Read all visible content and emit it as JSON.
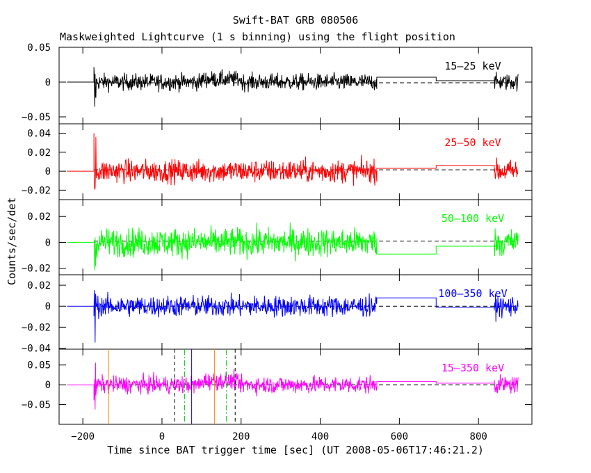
{
  "title": "Swift-BAT GRB 080506",
  "subtitle": "Maskweighted Lightcurve (1 s binning) using the flight position",
  "chart_data": {
    "type": "line",
    "xlabel": "Time since BAT trigger time [sec] (UT 2008-05-06T17:46:21.2)",
    "ylabel": "Counts/sec/det",
    "xlim": [
      -260,
      935
    ],
    "x_ticks": [
      -200,
      0,
      200,
      400,
      600,
      800
    ],
    "trigger_start": -172,
    "continuous_end": 543,
    "gap_start": 840,
    "data_end": 900,
    "panels": [
      {
        "name": "15-25 keV",
        "label": "15–25 keV",
        "color": "#000000",
        "ylim": [
          -0.06,
          0.05
        ],
        "ticks": [
          0.05,
          0,
          -0.05
        ],
        "tick_labels": [
          "0.05",
          "0",
          "−0.05"
        ],
        "noise": 0.006,
        "steps": [
          {
            "x0": 543,
            "x1": 693,
            "y": 0.007
          },
          {
            "x0": 693,
            "x1": 840,
            "y": 0.002
          }
        ],
        "dashed": -0.001,
        "spike_min": -0.045,
        "spike_max": 0.032
      },
      {
        "name": "25-50 keV",
        "label": "25–50 keV",
        "color": "#ff0000",
        "ylim": [
          -0.03,
          0.05
        ],
        "ticks": [
          0.04,
          0.02,
          0,
          -0.02
        ],
        "tick_labels": [
          "0.04",
          "0.02",
          "0",
          "−0.02"
        ],
        "noise": 0.006,
        "steps": [
          {
            "x0": 543,
            "x1": 693,
            "y": 0.003
          },
          {
            "x0": 693,
            "x1": 840,
            "y": 0.006
          }
        ],
        "dashed": 0.0015,
        "spike_min": -0.022,
        "spike_max": 0.045
      },
      {
        "name": "50-100 keV",
        "label": "50–100 keV",
        "color": "#00ff00",
        "ylim": [
          -0.025,
          0.033
        ],
        "ticks": [
          0.02,
          0,
          -0.02
        ],
        "tick_labels": [
          "0.02",
          "0",
          "−0.02"
        ],
        "noise": 0.0055,
        "steps": [
          {
            "x0": 543,
            "x1": 693,
            "y": -0.009
          },
          {
            "x0": 693,
            "x1": 840,
            "y": -0.003
          }
        ],
        "dashed": 0.001,
        "spike_min": -0.022,
        "spike_max": 0.028
      },
      {
        "name": "100-350 keV",
        "label": "100–350 keV",
        "color": "#0000ff",
        "ylim": [
          -0.041,
          0.03
        ],
        "ticks": [
          0.02,
          0,
          -0.02,
          -0.04
        ],
        "tick_labels": [
          "0.02",
          "0",
          "−0.02",
          "−0.04"
        ],
        "noise": 0.005,
        "steps": [
          {
            "x0": 543,
            "x1": 693,
            "y": 0.008
          },
          {
            "x0": 693,
            "x1": 840,
            "y": -0.001
          }
        ],
        "dashed": 0.0,
        "spike_min": -0.04,
        "spike_max": 0.025
      },
      {
        "name": "15-350 keV",
        "label": "15–350 keV",
        "color": "#ff00ff",
        "ylim": [
          -0.1,
          0.09
        ],
        "ticks": [
          0.05,
          0,
          -0.05
        ],
        "tick_labels": [
          "0.05",
          "0",
          "−0.05"
        ],
        "noise": 0.011,
        "steps": [
          {
            "x0": 543,
            "x1": 693,
            "y": 0.008
          },
          {
            "x0": 693,
            "x1": 840,
            "y": 0.004
          }
        ],
        "dashed": 0.0,
        "spike_min": -0.065,
        "spike_max": 0.07
      }
    ],
    "vertical_markers": [
      {
        "x": -135,
        "color": "#ff8000",
        "style": "solid"
      },
      {
        "x": 32,
        "color": "#000000",
        "style": "dashed"
      },
      {
        "x": 57,
        "color": "#00cc00",
        "style": "dashdot"
      },
      {
        "x": 75,
        "color": "#0000ff",
        "style": "solid"
      },
      {
        "x": 133,
        "color": "#ff8000",
        "style": "solid"
      },
      {
        "x": 163,
        "color": "#00cc00",
        "style": "dashdot"
      },
      {
        "x": 185,
        "color": "#000000",
        "style": "dashed"
      }
    ]
  }
}
